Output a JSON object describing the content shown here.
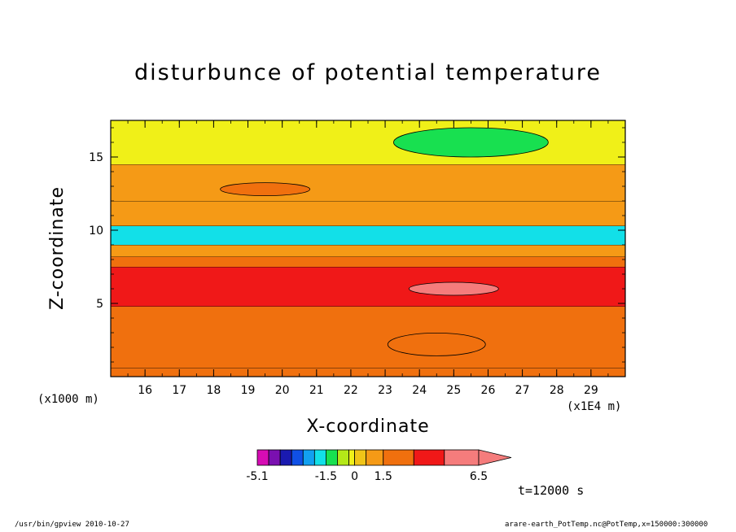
{
  "chart_data": {
    "type": "heatmap",
    "title": "disturbunce of potential temperature",
    "xlabel": "X-coordinate",
    "ylabel": "Z-coordinate",
    "x_unit_label": "(x1E4 m)",
    "z_unit_label": "(x1000 m)",
    "xlim": [
      15.0,
      30.0
    ],
    "ylim": [
      0.0,
      17.5
    ],
    "x_ticks": [
      16,
      17,
      18,
      19,
      20,
      21,
      22,
      23,
      24,
      25,
      26,
      27,
      28,
      29
    ],
    "y_ticks": [
      5,
      10,
      15
    ],
    "time_label": "t=12000 s",
    "colorbar": {
      "levels": [
        -5.1,
        -4.5,
        -3.9,
        -3.3,
        -2.7,
        -2.1,
        -1.5,
        -1.2,
        -0.9,
        -0.6,
        -0.3,
        0,
        0.3,
        0.6,
        0.9,
        1.2,
        1.5,
        2.3,
        3.1,
        3.9,
        4.7,
        5.5,
        6.5
      ],
      "tick_labels": [
        "-5.1",
        "-1.5",
        "0",
        "1.5",
        "6.5"
      ],
      "colors": [
        "#d60cb4",
        "#7a10b0",
        "#1a1ab0",
        "#1050e6",
        "#12a0f0",
        "#12e0e8",
        "#18e050",
        "#b4e818",
        "#f0f018",
        "#f0c418",
        "#f59a16",
        "#f0700e",
        "#f01818",
        "#f57c7c"
      ]
    },
    "bands": [
      {
        "z": [
          0.0,
          0.6
        ],
        "value": 1.9
      },
      {
        "z": [
          0.6,
          4.8
        ],
        "value": 2.7
      },
      {
        "z": [
          4.8,
          7.5
        ],
        "value": 3.5
      },
      {
        "z": [
          7.5,
          8.2
        ],
        "value": 2.7
      },
      {
        "z": [
          8.2,
          9.0
        ],
        "value": 1.4
      },
      {
        "z": [
          9.0,
          10.3
        ],
        "value": -1.8
      },
      {
        "z": [
          10.3,
          12.0
        ],
        "value": 1.0
      },
      {
        "z": [
          12.0,
          14.5
        ],
        "value": 0.7
      },
      {
        "z": [
          14.5,
          17.5
        ],
        "value": -0.1
      }
    ],
    "features": [
      {
        "x": 25.0,
        "z": 6.0,
        "value": 5.2
      },
      {
        "x": 25.5,
        "z": 16.0,
        "value": -1.4
      },
      {
        "x": 19.5,
        "z": 12.8,
        "value": 1.8
      },
      {
        "x": 24.5,
        "z": 2.2,
        "value": 2.0
      }
    ]
  },
  "footer": {
    "left": "/usr/bin/gpview  2010-10-27",
    "right": "arare-earth_PotTemp.nc@PotTemp,x=150000:300000"
  }
}
